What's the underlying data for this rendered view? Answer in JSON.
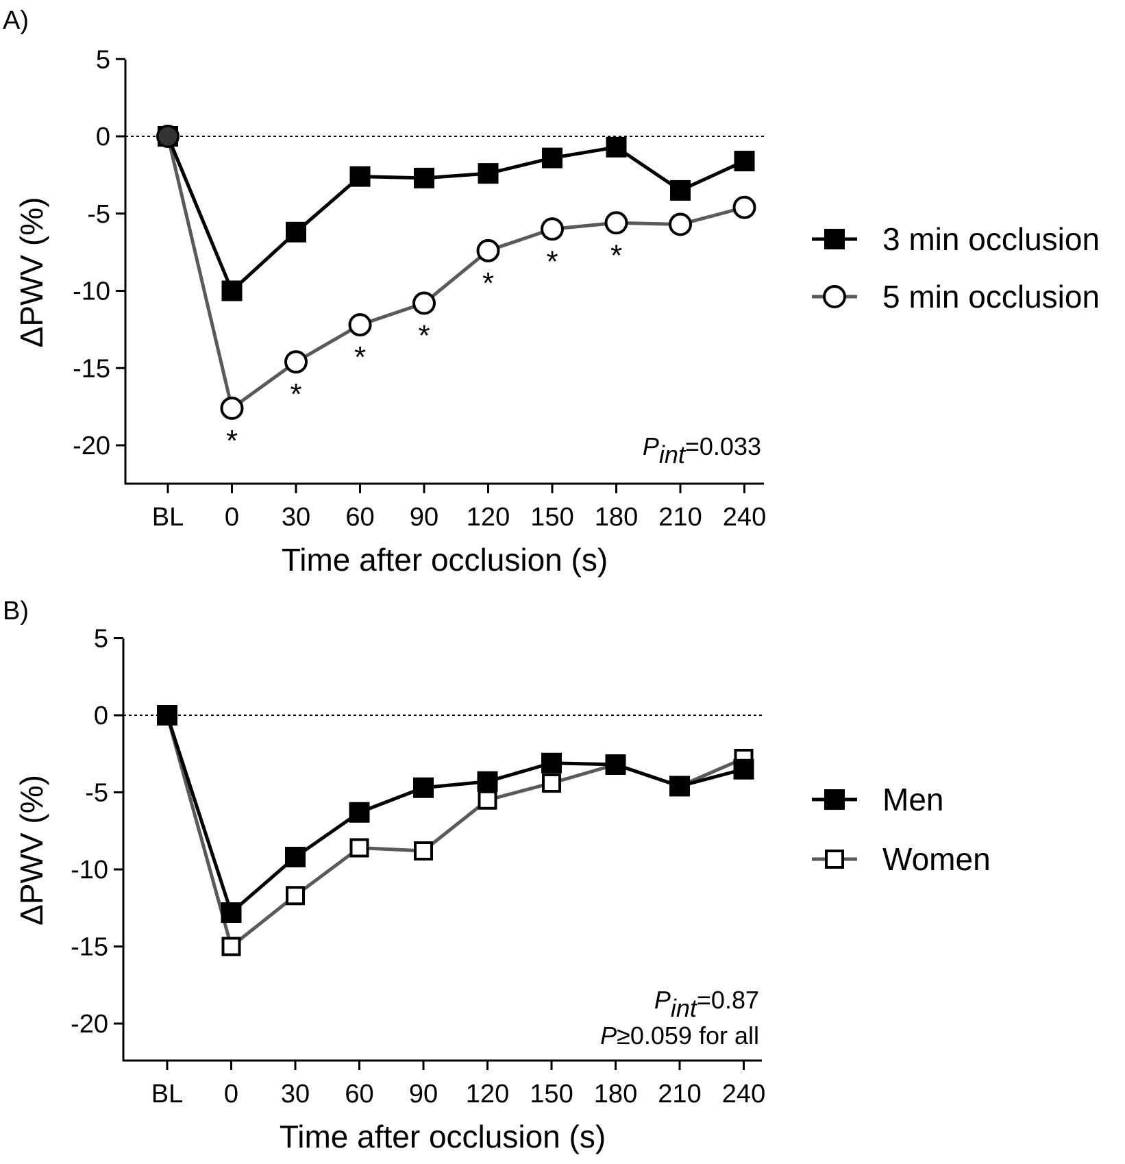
{
  "chart_data": [
    {
      "panel_label": "A)",
      "type": "line",
      "categories": [
        "BL",
        "0",
        "30",
        "60",
        "90",
        "120",
        "150",
        "180",
        "210",
        "240"
      ],
      "xlabel": "Time after occlusion (s)",
      "ylabel": "ΔPWV (%)",
      "ylim": [
        -22.5,
        5
      ],
      "yticks": [
        "5",
        "0",
        "-5",
        "-10",
        "-15",
        "-20"
      ],
      "reference_line": 0,
      "series": [
        {
          "name": "3 min occlusion",
          "marker": "filled-square",
          "color": "#000000",
          "values": [
            0,
            -10.0,
            -6.2,
            -2.6,
            -2.7,
            -2.4,
            -1.4,
            -0.7,
            -3.5,
            -1.6
          ]
        },
        {
          "name": "5 min occlusion",
          "marker": "open-circle",
          "color": "#5a5a5a",
          "values": [
            0,
            -17.6,
            -14.6,
            -12.2,
            -10.8,
            -7.4,
            -6.0,
            -5.6,
            -5.7,
            -4.6
          ]
        }
      ],
      "significance_marks": [
        "0",
        "30",
        "60",
        "90",
        "120",
        "150",
        "180"
      ],
      "significance_symbol": "*",
      "stat_note": {
        "p": "P",
        "sub": "int",
        "rest": "=0.033"
      },
      "legend_position": "right"
    },
    {
      "panel_label": "B)",
      "type": "line",
      "categories": [
        "BL",
        "0",
        "30",
        "60",
        "90",
        "120",
        "150",
        "180",
        "210",
        "240"
      ],
      "xlabel": "Time after occlusion (s)",
      "ylabel": "ΔPWV (%)",
      "ylim": [
        -22.5,
        5
      ],
      "yticks": [
        "5",
        "0",
        "-5",
        "-10",
        "-15",
        "-20"
      ],
      "reference_line": 0,
      "series": [
        {
          "name": "Men",
          "marker": "filled-square",
          "color": "#000000",
          "values": [
            0,
            -12.8,
            -9.2,
            -6.3,
            -4.7,
            -4.3,
            -3.1,
            -3.2,
            -4.6,
            -3.5
          ]
        },
        {
          "name": "Women",
          "marker": "open-square",
          "color": "#5a5a5a",
          "values": [
            0,
            -15.0,
            -11.7,
            -8.6,
            -8.8,
            -5.5,
            -4.4,
            -3.2,
            -4.6,
            -2.8
          ]
        }
      ],
      "stat_note": {
        "p": "P",
        "sub": "int",
        "rest": "=0.87",
        "line2_p": "P",
        "line2_rest": "≥0.059 for all"
      },
      "legend_position": "right"
    }
  ]
}
